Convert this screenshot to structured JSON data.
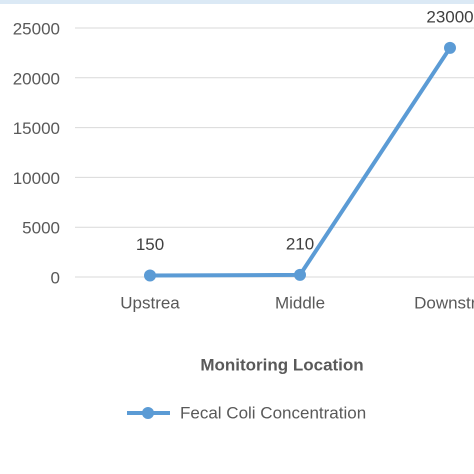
{
  "chart_data": {
    "type": "line",
    "categories": [
      "Upstrea",
      "Middle",
      "Downstre"
    ],
    "series": [
      {
        "name": "Fecal Coli Concentration",
        "color": "#5b9bd5",
        "values": [
          150,
          210,
          23000
        ]
      }
    ],
    "x_label": "Monitoring Location",
    "ylim": [
      0,
      25000
    ],
    "yticks": [
      0,
      5000,
      10000,
      15000,
      20000,
      25000
    ],
    "grid": true,
    "data_labels": true
  }
}
